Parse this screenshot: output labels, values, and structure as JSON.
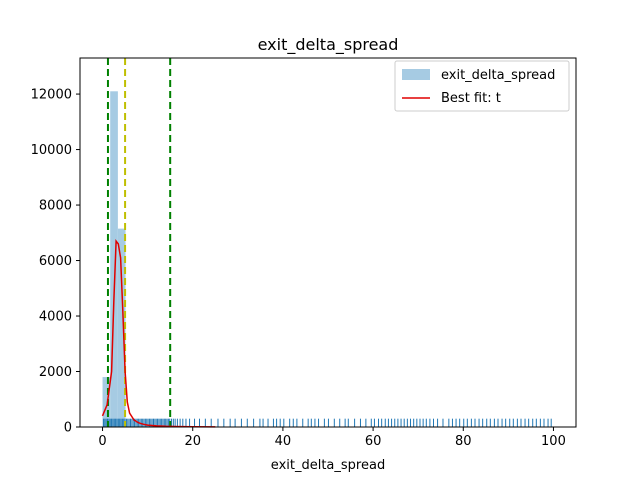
{
  "chart_data": {
    "type": "bar",
    "title": "exit_delta_spread",
    "xlabel": "exit_delta_spread",
    "ylabel": "",
    "xlim": [
      -5,
      105
    ],
    "ylim": [
      0,
      13300
    ],
    "x_ticks": [
      0,
      20,
      40,
      60,
      80,
      100
    ],
    "y_ticks": [
      0,
      2000,
      4000,
      6000,
      8000,
      10000,
      12000
    ],
    "grid": false,
    "legend_position": "top-right",
    "histogram": {
      "name": "exit_delta_spread",
      "color": "#a6cbe3",
      "bin_edges": [
        0,
        1.7,
        3.4,
        5.1
      ],
      "counts": [
        1800,
        12100,
        7150
      ]
    },
    "fit_line": {
      "name": "Best fit: t",
      "color": "#e00000",
      "x": [
        0,
        1,
        2,
        2.5,
        3,
        3.5,
        4,
        4.5,
        5,
        5.5,
        6,
        7,
        8,
        9,
        10,
        12,
        14,
        16,
        20,
        25
      ],
      "y": [
        400,
        800,
        2000,
        4500,
        6700,
        6600,
        6100,
        4200,
        2000,
        900,
        500,
        250,
        150,
        100,
        70,
        40,
        25,
        18,
        10,
        5
      ]
    },
    "vertical_lines": [
      {
        "x": 1.2,
        "color": "#008000",
        "style": "dashed"
      },
      {
        "x": 5.0,
        "color": "#bfbf00",
        "style": "dashed"
      },
      {
        "x": 15.0,
        "color": "#008000",
        "style": "dashed"
      }
    ],
    "rug": {
      "color": "#1f77b4",
      "height": 300,
      "x": [
        0.2,
        0.5,
        0.8,
        1.1,
        1.4,
        1.7,
        2.0,
        2.3,
        2.6,
        2.9,
        3.2,
        3.5,
        3.8,
        4.1,
        4.4,
        4.7,
        5.0,
        5.3,
        5.6,
        5.9,
        6.2,
        6.5,
        6.8,
        7.1,
        7.4,
        7.7,
        8.0,
        8.3,
        8.6,
        8.9,
        9.2,
        9.5,
        9.8,
        10.1,
        10.4,
        10.7,
        11.0,
        11.3,
        11.6,
        11.9,
        12.2,
        12.5,
        12.8,
        13.1,
        13.4,
        13.7,
        14.0,
        14.3,
        14.6,
        14.9,
        15.3,
        15.7,
        16.1,
        16.6,
        17.2,
        17.8,
        18.5,
        19.3,
        20.4,
        21.5,
        22.8,
        24.1,
        25.6,
        26.9,
        28.3,
        29.4,
        30.8,
        32.1,
        33.5,
        34.9,
        35.6,
        36.7,
        37.9,
        38.6,
        39.4,
        40.2,
        41.5,
        42.3,
        43.1,
        44.4,
        45.6,
        46.3,
        47.1,
        47.9,
        49.2,
        50.1,
        51.4,
        52.6,
        53.8,
        54.5,
        55.9,
        57.2,
        58.4,
        59.6,
        60.3,
        61.2,
        61.9,
        62.7,
        63.4,
        64.1,
        64.8,
        65.5,
        66.2,
        66.9,
        67.6,
        68.3,
        69.0,
        69.7,
        70.4,
        71.1,
        71.8,
        72.6,
        73.4,
        74.3,
        75.5,
        76.8,
        77.6,
        78.4,
        79.2,
        80.1,
        80.9,
        81.8,
        82.6,
        83.5,
        84.3,
        85.2,
        86.0,
        86.9,
        87.7,
        88.6,
        89.4,
        90.3,
        91.1,
        92.0,
        92.8,
        93.7,
        94.5,
        95.4,
        96.2,
        97.1,
        97.9,
        98.8,
        99.5
      ]
    }
  }
}
